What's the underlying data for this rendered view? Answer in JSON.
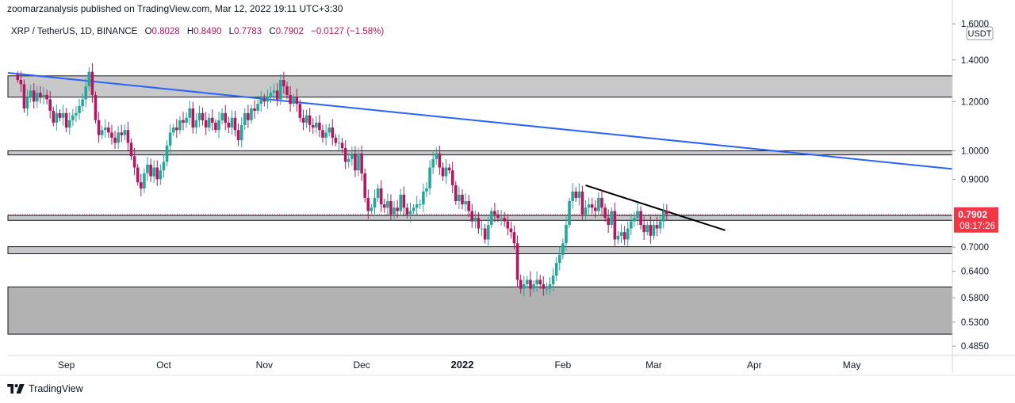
{
  "header": {
    "published_line": "zoomarzanalysis published on TradingView.com, Mar 12, 2022 19:11 UTC+3:30"
  },
  "legend": {
    "symbol": "XRP / TetherUS, 1D, BINANCE",
    "open_label": "O",
    "open": "0.8028",
    "high_label": "H",
    "high": "0.8490",
    "low_label": "L",
    "low": "0.7783",
    "close_label": "C",
    "close": "0.7902",
    "change": "−0.0127 (−1.58%)"
  },
  "price_scale": {
    "currency": "USDT",
    "last_price": "0.7902",
    "countdown": "08:17:26",
    "last_price_color": "#f23645"
  },
  "footer": {
    "brand": "TradingView",
    "logo_icon": "tradingview-logo-icon"
  },
  "colors": {
    "up": "#26a69a",
    "down": "#b2185e",
    "trendline": "#2962ff",
    "zone_fill": "#c8c8c8",
    "dark_zone_fill": "#b2b2b2"
  },
  "chart_data": {
    "type": "candlestick",
    "scale": "log",
    "ylim": [
      0.47,
      1.62
    ],
    "y_ticks": [
      "1.6000",
      "1.4000",
      "1.2000",
      "1.0000",
      "0.9000",
      "0.7000",
      "0.6400",
      "0.5800",
      "0.5300",
      "0.4850"
    ],
    "y_tick_values": [
      1.6,
      1.4,
      1.2,
      1.0,
      0.9,
      0.7,
      0.64,
      0.58,
      0.53,
      0.485
    ],
    "x_ticks": [
      "Sep",
      "Oct",
      "Nov",
      "Dec",
      "2022",
      "Feb",
      "Mar",
      "Apr",
      "May"
    ],
    "x_tick_days": [
      15,
      45,
      76,
      106,
      137,
      168,
      196,
      227,
      257
    ],
    "x_days_range": [
      -3,
      288
    ],
    "close_series_day_range": [
      0,
      221
    ],
    "close_series": [
      1.3,
      1.28,
      1.17,
      1.22,
      1.25,
      1.2,
      1.24,
      1.22,
      1.23,
      1.21,
      1.16,
      1.11,
      1.15,
      1.13,
      1.15,
      1.09,
      1.12,
      1.14,
      1.15,
      1.18,
      1.21,
      1.27,
      1.34,
      1.23,
      1.12,
      1.06,
      1.08,
      1.09,
      1.07,
      1.05,
      1.03,
      1.07,
      1.06,
      1.08,
      1.03,
      0.98,
      0.94,
      0.89,
      0.87,
      0.92,
      0.95,
      0.91,
      0.94,
      0.9,
      0.93,
      0.96,
      1.02,
      1.07,
      1.09,
      1.08,
      1.12,
      1.11,
      1.13,
      1.17,
      1.09,
      1.12,
      1.15,
      1.12,
      1.09,
      1.13,
      1.11,
      1.08,
      1.12,
      1.15,
      1.11,
      1.09,
      1.13,
      1.08,
      1.04,
      1.1,
      1.15,
      1.12,
      1.17,
      1.16,
      1.19,
      1.21,
      1.2,
      1.22,
      1.24,
      1.25,
      1.21,
      1.3,
      1.27,
      1.23,
      1.19,
      1.22,
      1.19,
      1.13,
      1.11,
      1.14,
      1.1,
      1.09,
      1.11,
      1.08,
      1.05,
      1.07,
      1.09,
      1.05,
      1.03,
      1.03,
      1.01,
      0.96,
      0.97,
      0.99,
      0.93,
      0.99,
      0.92,
      0.84,
      0.8,
      0.81,
      0.84,
      0.87,
      0.82,
      0.81,
      0.83,
      0.79,
      0.81,
      0.8,
      0.85,
      0.81,
      0.79,
      0.8,
      0.81,
      0.82,
      0.82,
      0.86,
      0.87,
      0.94,
      0.97,
      0.99,
      0.94,
      0.91,
      0.94,
      0.93,
      0.88,
      0.83,
      0.85,
      0.82,
      0.83,
      0.8,
      0.77,
      0.78,
      0.75,
      0.75,
      0.72,
      0.76,
      0.8,
      0.79,
      0.78,
      0.78,
      0.77,
      0.75,
      0.74,
      0.71,
      0.62,
      0.6,
      0.61,
      0.62,
      0.6,
      0.61,
      0.62,
      0.61,
      0.6,
      0.6,
      0.61,
      0.63,
      0.66,
      0.68,
      0.71,
      0.76,
      0.83,
      0.86,
      0.84,
      0.86,
      0.79,
      0.81,
      0.82,
      0.81,
      0.8,
      0.84,
      0.81,
      0.78,
      0.76,
      0.8,
      0.72,
      0.73,
      0.74,
      0.72,
      0.75,
      0.77,
      0.78,
      0.8,
      0.76,
      0.74,
      0.76,
      0.73,
      0.76,
      0.75,
      0.77,
      0.8,
      0.7902
    ],
    "zones": [
      {
        "name": "upper-resistance-zone",
        "y_from": 1.22,
        "y_to": 1.32
      },
      {
        "name": "one-dollar-zone",
        "y_from": 0.985,
        "y_to": 1.0
      },
      {
        "name": "current-price-zone",
        "y_from": 0.773,
        "y_to": 0.787
      },
      {
        "name": "0.70-support-zone",
        "y_from": 0.683,
        "y_to": 0.701
      },
      {
        "name": "lower-demand-zone",
        "y_from": 0.507,
        "y_to": 0.604
      }
    ],
    "trendlines": [
      {
        "name": "long-term-descending-trendline",
        "from": [
          -3,
          1.335
        ],
        "to": [
          288,
          0.935
        ],
        "color": "#2962ff"
      },
      {
        "name": "short-term-descending-trendline",
        "from": [
          175,
          0.88
        ],
        "to": [
          218,
          0.745
        ],
        "color": "#000000"
      }
    ],
    "last_price_line": 0.7902
  }
}
